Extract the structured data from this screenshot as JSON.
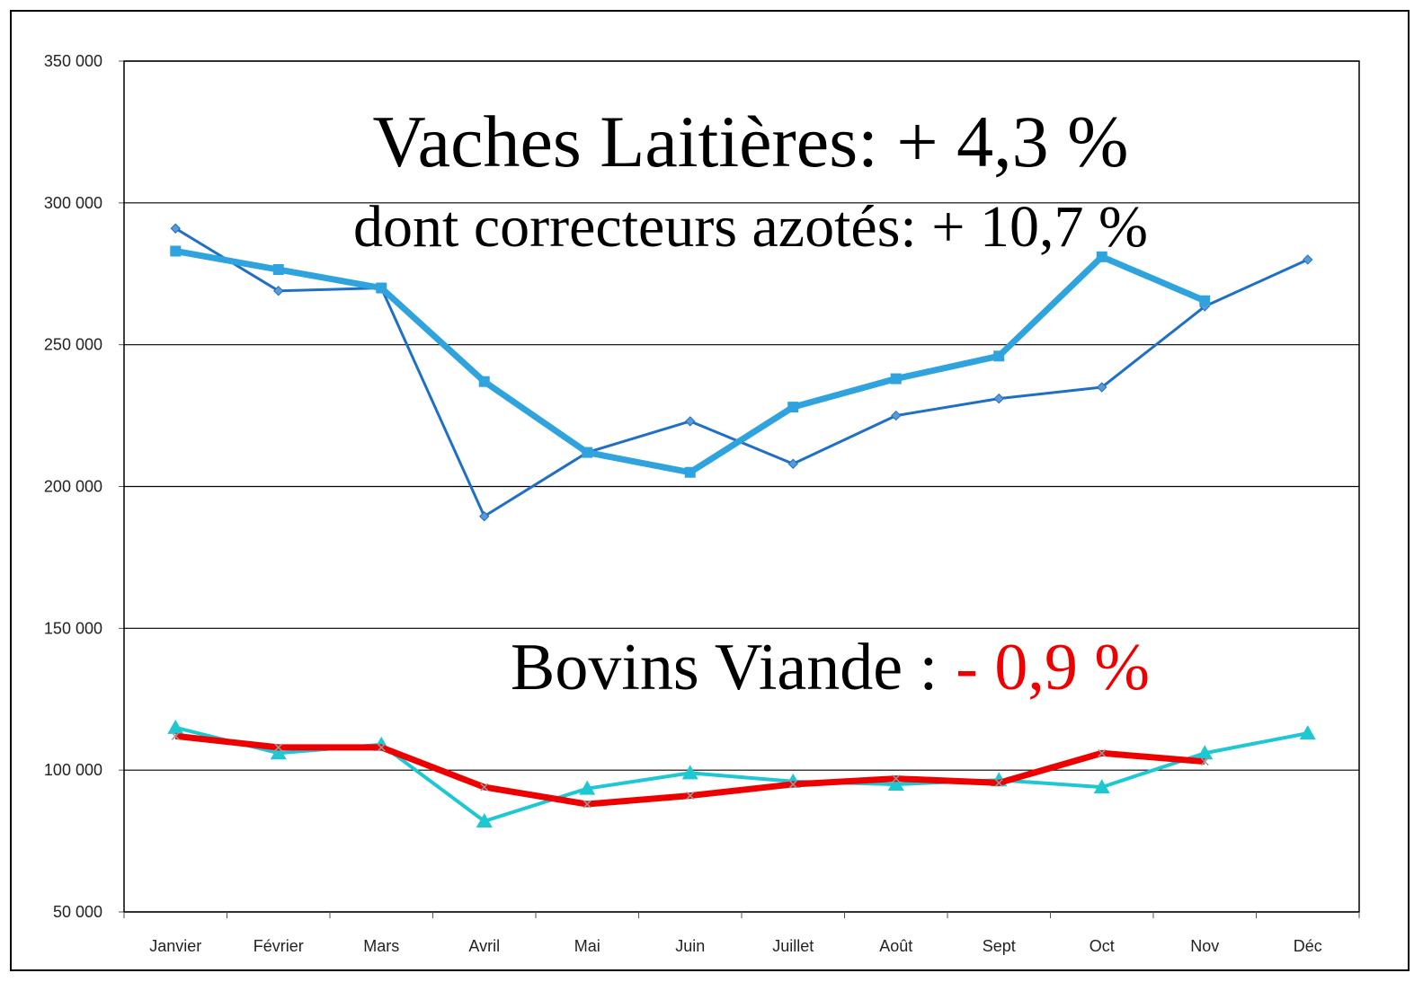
{
  "chart_data": {
    "type": "line",
    "categories": [
      "Janvier",
      "Février",
      "Mars",
      "Avril",
      "Mai",
      "Juin",
      "Juillet",
      "Août",
      "Sept",
      "Oct",
      "Nov",
      "Déc"
    ],
    "series": [
      {
        "color": "#1f6fc5",
        "marker": "diamond",
        "width": 3,
        "values": [
          291000,
          269000,
          270000,
          189500,
          212000,
          223000,
          208000,
          225000,
          231000,
          235000,
          263500,
          280000
        ]
      },
      {
        "color": "#2ea3dd",
        "marker": "square",
        "width": 7,
        "values": [
          283000,
          276500,
          270000,
          237000,
          212000,
          205000,
          228000,
          238000,
          246000,
          281000,
          265500,
          null
        ]
      },
      {
        "color": "#1ec8d2",
        "marker": "triangle",
        "width": 4,
        "values": [
          115000,
          106000,
          109000,
          82000,
          93500,
          99000,
          96000,
          95000,
          96500,
          94000,
          106000,
          113000
        ]
      },
      {
        "color": "#ee0000",
        "marker": "x",
        "width": 7,
        "values": [
          112000,
          108000,
          108000,
          94000,
          88000,
          91000,
          95000,
          97000,
          95500,
          106000,
          103000,
          null
        ]
      }
    ],
    "ylim": [
      50000,
      350000
    ],
    "yticks": [
      {
        "value": 50000,
        "label": "50 000"
      },
      {
        "value": 100000,
        "label": "100 000"
      },
      {
        "value": 150000,
        "label": "150 000"
      },
      {
        "value": 200000,
        "label": "200 000"
      },
      {
        "value": 250000,
        "label": "250 000"
      },
      {
        "value": 300000,
        "label": "300 000"
      },
      {
        "value": 350000,
        "label": "350 000"
      }
    ],
    "grid": true,
    "annotations": [
      {
        "text": "Vaches Laitières: + 4,3 %",
        "color": "#000000"
      },
      {
        "text": "dont correcteurs azotés: + 10,7 %",
        "color": "#000000"
      },
      {
        "text": "Bovins Viande :",
        "color": "#000000"
      },
      {
        "text": "- 0,9 %",
        "color": "#ee0000"
      }
    ]
  }
}
